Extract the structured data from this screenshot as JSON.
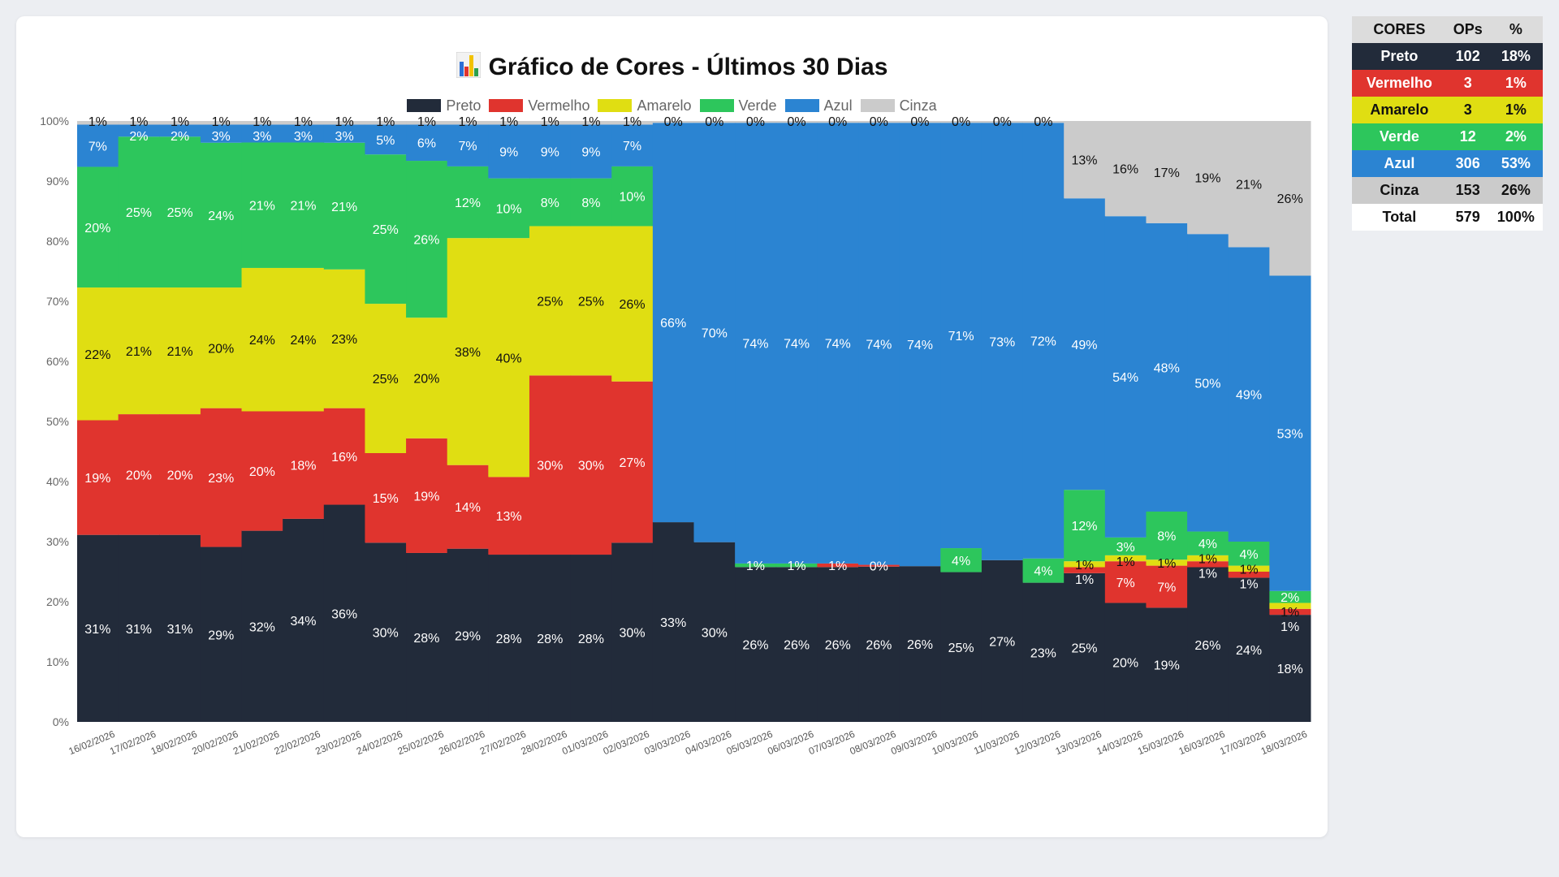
{
  "chart_data": {
    "type": "bar",
    "stacked": true,
    "title": "Gráfico de Cores - Últimos 30 Dias",
    "xlabel": "",
    "ylabel": "",
    "ylim": [
      0,
      100
    ],
    "yticks": [
      "0%",
      "10%",
      "20%",
      "30%",
      "40%",
      "50%",
      "60%",
      "70%",
      "80%",
      "90%",
      "100%"
    ],
    "legend_position": "top",
    "categories": [
      "16/02/2026",
      "17/02/2026",
      "18/02/2026",
      "20/02/2026",
      "21/02/2026",
      "22/02/2026",
      "23/02/2026",
      "24/02/2026",
      "25/02/2026",
      "26/02/2026",
      "27/02/2026",
      "28/02/2026",
      "01/03/2026",
      "02/03/2026",
      "03/03/2026",
      "04/03/2026",
      "05/03/2026",
      "06/03/2026",
      "07/03/2026",
      "08/03/2026",
      "09/03/2026",
      "10/03/2026",
      "11/03/2026",
      "12/03/2026",
      "13/03/2026",
      "14/03/2026",
      "15/03/2026",
      "16/03/2026",
      "17/03/2026",
      "18/03/2026"
    ],
    "series": [
      {
        "name": "Preto",
        "color": "#222b3a",
        "label_color": "#ffffff",
        "values": [
          31,
          31,
          31,
          29,
          32,
          34,
          36,
          30,
          28,
          29,
          28,
          28,
          28,
          30,
          33,
          30,
          26,
          26,
          26,
          26,
          26,
          25,
          27,
          23,
          25,
          20,
          19,
          26,
          24,
          18
        ]
      },
      {
        "name": "Vermelho",
        "color": "#e0342e",
        "label_color": "#ffffff",
        "values": [
          19,
          20,
          20,
          23,
          20,
          18,
          16,
          15,
          19,
          14,
          13,
          30,
          30,
          27,
          0,
          0,
          0,
          0,
          0.6,
          0.3,
          0,
          0,
          0,
          0,
          1,
          7,
          7,
          1,
          1,
          1
        ]
      },
      {
        "name": "Amarelo",
        "color": "#e0de12",
        "label_color": "#111111",
        "values": [
          22,
          21,
          21,
          20,
          24,
          24,
          23,
          25,
          20,
          38,
          40,
          25,
          25,
          26,
          0,
          0,
          0,
          0,
          0,
          0,
          0,
          0,
          0,
          0,
          1,
          1,
          1,
          1,
          1,
          1
        ]
      },
      {
        "name": "Verde",
        "color": "#2dc65c",
        "label_color": "#ffffff",
        "values": [
          20,
          25,
          25,
          24,
          21,
          21,
          21,
          25,
          26,
          12,
          10,
          8,
          8,
          10,
          0,
          0,
          0.6,
          0.6,
          0,
          0,
          0,
          4,
          0,
          4,
          12,
          3,
          8,
          4,
          4,
          2
        ]
      },
      {
        "name": "Azul",
        "color": "#2b84d2",
        "label_color": "#ffffff",
        "values": [
          7,
          2,
          2,
          3,
          3,
          3,
          3,
          5,
          6,
          7,
          9,
          9,
          9,
          7,
          66,
          70,
          74,
          74,
          74,
          74,
          74,
          71,
          73,
          72,
          49,
          54,
          48,
          50,
          49,
          53
        ]
      },
      {
        "name": "Cinza",
        "color": "#cbcbcb",
        "label_color": "#111111",
        "values": [
          0.6,
          0.6,
          0.6,
          0.6,
          0.6,
          0.6,
          0.6,
          0.6,
          0.6,
          0.6,
          0.6,
          0.6,
          0.6,
          0.6,
          0.3,
          0.3,
          0.3,
          0.3,
          0.3,
          0.3,
          0.3,
          0.3,
          0.3,
          0.3,
          13,
          16,
          17,
          19,
          21,
          26
        ]
      }
    ]
  },
  "summary_table": {
    "headers": [
      "CORES",
      "OPs",
      "%"
    ],
    "rows": [
      {
        "cor": "Preto",
        "ops": "102",
        "pct": "18%",
        "bg": "#222b3a",
        "fg": "#ffffff"
      },
      {
        "cor": "Vermelho",
        "ops": "3",
        "pct": "1%",
        "bg": "#e0342e",
        "fg": "#ffffff"
      },
      {
        "cor": "Amarelo",
        "ops": "3",
        "pct": "1%",
        "bg": "#e0de12",
        "fg": "#111111"
      },
      {
        "cor": "Verde",
        "ops": "12",
        "pct": "2%",
        "bg": "#2dc65c",
        "fg": "#ffffff"
      },
      {
        "cor": "Azul",
        "ops": "306",
        "pct": "53%",
        "bg": "#2b84d2",
        "fg": "#ffffff"
      },
      {
        "cor": "Cinza",
        "ops": "153",
        "pct": "26%",
        "bg": "#cbcbcb",
        "fg": "#111111"
      },
      {
        "cor": "Total",
        "ops": "579",
        "pct": "100%",
        "bg": "#ffffff",
        "fg": "#111111"
      }
    ]
  }
}
